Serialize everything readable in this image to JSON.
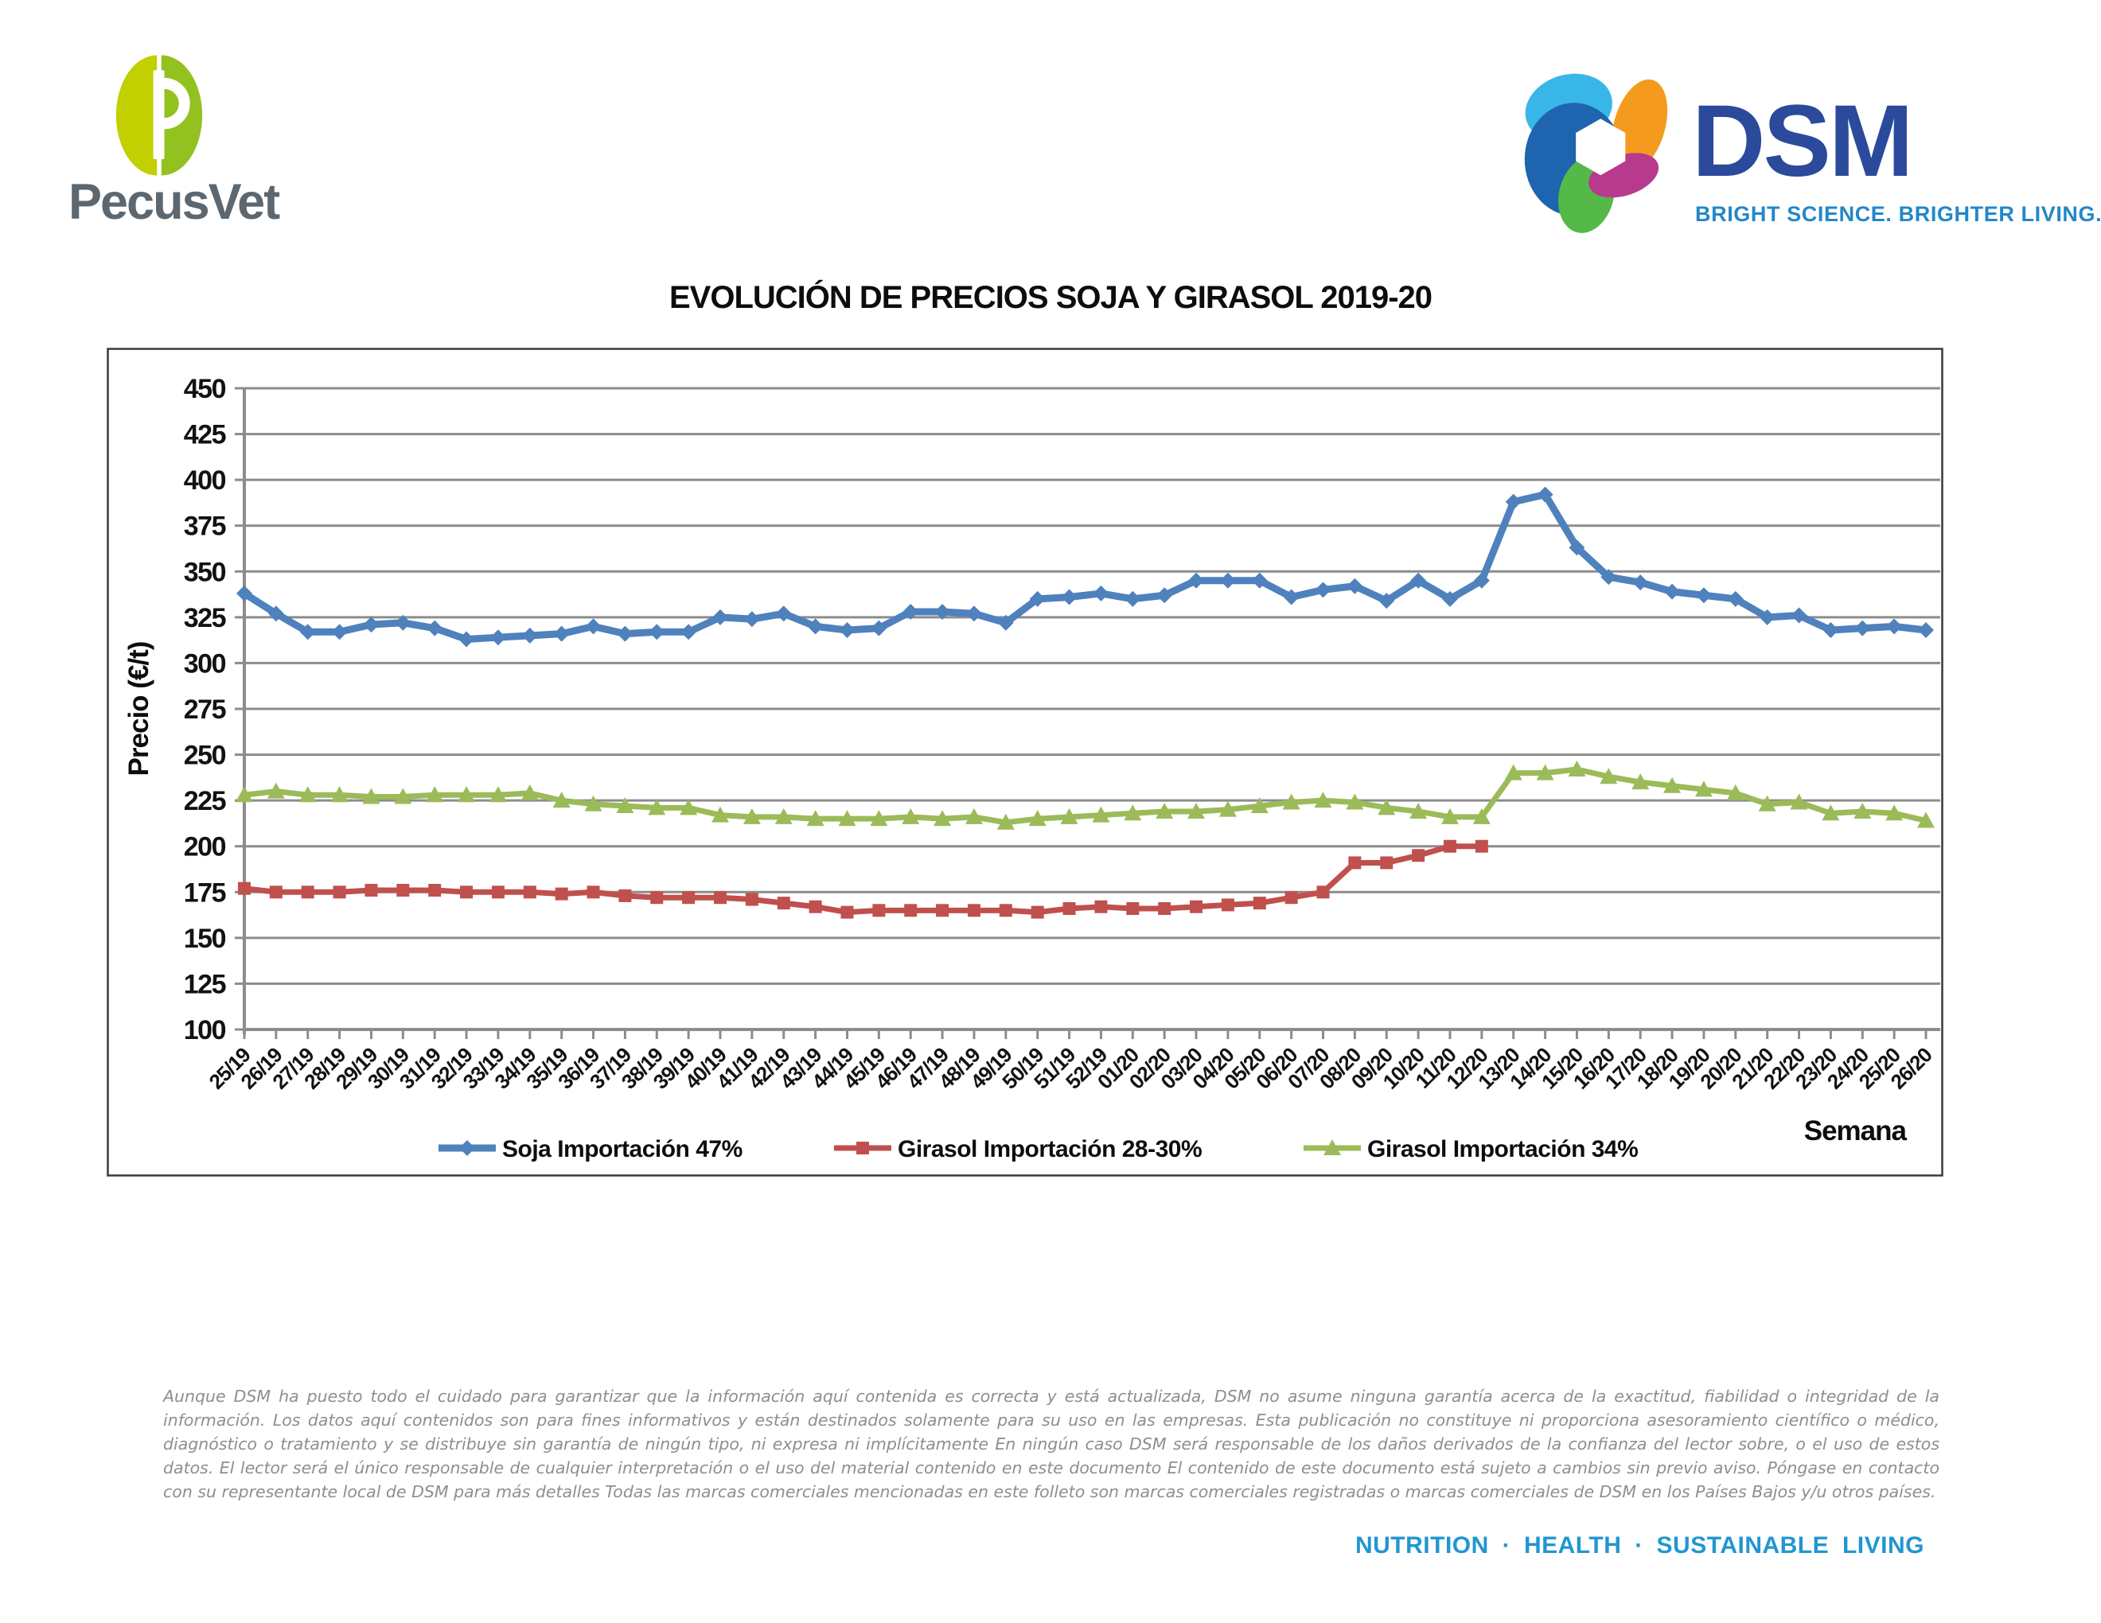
{
  "header": {
    "pecusvet": {
      "wordmark": "PecusVet",
      "monogram": "P"
    },
    "dsm": {
      "wordmark": "DSM",
      "tagline": "BRIGHT SCIENCE. BRIGHTER LIVING."
    }
  },
  "chart_title": "EVOLUCIÓN DE PRECIOS SOJA Y GIRASOL 2019-20",
  "chart_data": {
    "type": "line",
    "title": "EVOLUCIÓN DE PRECIOS SOJA Y GIRASOL 2019-20",
    "xlabel": "Semana",
    "ylabel": "Precio (€/t)",
    "ylim": [
      100,
      450
    ],
    "yticks": [
      100,
      125,
      150,
      175,
      200,
      225,
      250,
      275,
      300,
      325,
      350,
      375,
      400,
      425,
      450
    ],
    "grid": true,
    "legend_position": "bottom",
    "categories": [
      "25/19",
      "26/19",
      "27/19",
      "28/19",
      "29/19",
      "30/19",
      "31/19",
      "32/19",
      "33/19",
      "34/19",
      "35/19",
      "36/19",
      "37/19",
      "38/19",
      "39/19",
      "40/19",
      "41/19",
      "42/19",
      "43/19",
      "44/19",
      "45/19",
      "46/19",
      "47/19",
      "48/19",
      "49/19",
      "50/19",
      "51/19",
      "52/19",
      "01/20",
      "02/20",
      "03/20",
      "04/20",
      "05/20",
      "06/20",
      "07/20",
      "08/20",
      "09/20",
      "10/20",
      "11/20",
      "12/20",
      "13/20",
      "14/20",
      "15/20",
      "16/20",
      "17/20",
      "18/20",
      "19/20",
      "20/20",
      "21/20",
      "22/20",
      "23/20",
      "24/20",
      "25/20",
      "26/20"
    ],
    "series": [
      {
        "name": "Soja Importación 47%",
        "color": "#4F81BD",
        "marker": "diamond",
        "values": [
          338,
          327,
          317,
          317,
          321,
          322,
          319,
          313,
          314,
          315,
          316,
          320,
          316,
          317,
          317,
          325,
          324,
          327,
          320,
          318,
          319,
          328,
          328,
          327,
          322,
          335,
          336,
          338,
          335,
          337,
          345,
          345,
          345,
          336,
          340,
          342,
          334,
          345,
          335,
          345,
          388,
          392,
          363,
          347,
          344,
          339,
          337,
          335,
          325,
          326,
          318,
          319,
          320,
          318
        ]
      },
      {
        "name": "Girasol Importación 28-30%",
        "color": "#C0504D",
        "marker": "square",
        "values": [
          177,
          175,
          175,
          175,
          176,
          176,
          176,
          175,
          175,
          175,
          174,
          175,
          173,
          172,
          172,
          172,
          171,
          169,
          167,
          164,
          165,
          165,
          165,
          165,
          165,
          164,
          166,
          167,
          166,
          166,
          167,
          168,
          169,
          172,
          175,
          191,
          191,
          195,
          200,
          200
        ]
      },
      {
        "name": "Girasol Importación 34%",
        "color": "#9BBB59",
        "marker": "triangle",
        "values": [
          228,
          230,
          228,
          228,
          227,
          227,
          228,
          228,
          228,
          229,
          225,
          223,
          222,
          221,
          221,
          217,
          216,
          216,
          215,
          215,
          215,
          216,
          215,
          216,
          213,
          215,
          216,
          217,
          218,
          219,
          219,
          220,
          222,
          224,
          225,
          224,
          221,
          219,
          216,
          216,
          240,
          240,
          242,
          238,
          235,
          233,
          231,
          229,
          223,
          224,
          218,
          219,
          218,
          214
        ]
      }
    ]
  },
  "footer": {
    "disclaimer": "Aunque DSM ha puesto todo el cuidado para garantizar que la información aquí contenida es correcta y está actualizada, DSM no asume ninguna garantía acerca de la exactitud, fiabilidad o integridad de la información. Los datos aquí contenidos son para fines informativos y están destinados solamente para su uso en las empresas. Esta publicación no constituye ni proporciona asesoramiento científico o médico, diagnóstico o tratamiento y se distribuye sin garantía de ningún tipo, ni expresa ni implícitamente En ningún caso DSM será responsable de los daños derivados de la confianza del lector sobre, o el uso de estos datos. El lector será el único responsable de cualquier interpretación o el uso del material contenido en este documento El contenido de este documento está sujeto a cambios sin previo aviso. Póngase en contacto con su representante local de DSM para más detalles Todas las marcas comerciales mencionadas en este folleto son marcas comerciales registradas o marcas comerciales de DSM en los Países Bajos y/u otros países.",
    "tagline": "NUTRITION · HEALTH · SUSTAINABLE LIVING"
  },
  "colors": {
    "grid": "#8C8C8C",
    "axis_text": "#121212",
    "chart_border": "#3A3A3A",
    "dsm_blue": "#2B4A9B",
    "dsm_light_blue": "#2196D1",
    "pecus_gray": "#5C6770",
    "pecus_green_left": "#C2CF00",
    "pecus_green_right": "#93C11F",
    "disclaimer_gray": "#8E8E8E"
  }
}
